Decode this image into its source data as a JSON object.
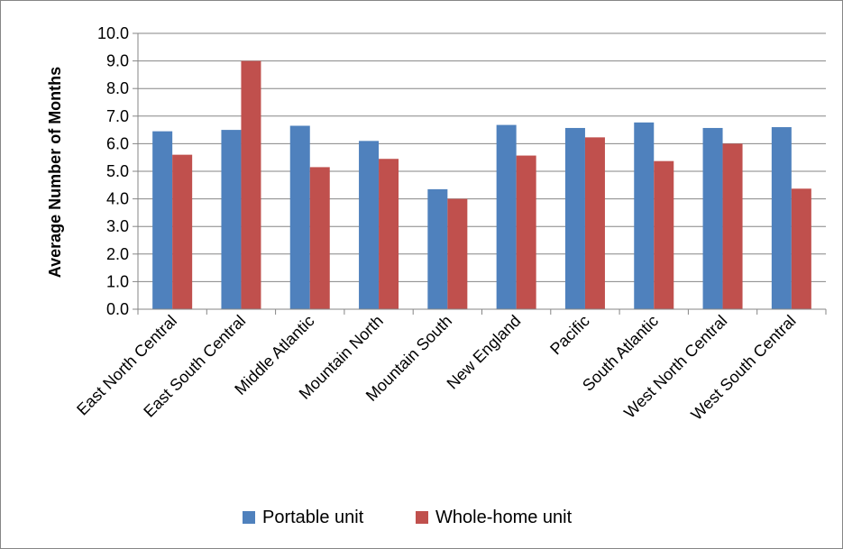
{
  "chart_data": {
    "type": "bar",
    "title": "",
    "xlabel": "",
    "ylabel": "Average Number of Months",
    "ylim": [
      0,
      10
    ],
    "ytick_step": 1,
    "ytick_labels": [
      "0.0",
      "1.0",
      "2.0",
      "3.0",
      "4.0",
      "5.0",
      "6.0",
      "7.0",
      "8.0",
      "9.0",
      "10.0"
    ],
    "grid": true,
    "legend_position": "bottom",
    "categories": [
      "East North Central",
      "East South Central",
      "Middle Atlantic",
      "Mountain North",
      "Mountain South",
      "New England",
      "Pacific",
      "South Atlantic",
      "West North Central",
      "West South Central"
    ],
    "series": [
      {
        "name": "Portable unit",
        "color": "#4F81BD",
        "values": [
          6.45,
          6.5,
          6.65,
          6.1,
          4.35,
          6.68,
          6.57,
          6.77,
          6.57,
          6.6
        ]
      },
      {
        "name": "Whole-home unit",
        "color": "#C0504D",
        "values": [
          5.6,
          9.0,
          5.15,
          5.45,
          4.0,
          5.57,
          6.23,
          5.37,
          6.0,
          4.37
        ]
      }
    ]
  }
}
